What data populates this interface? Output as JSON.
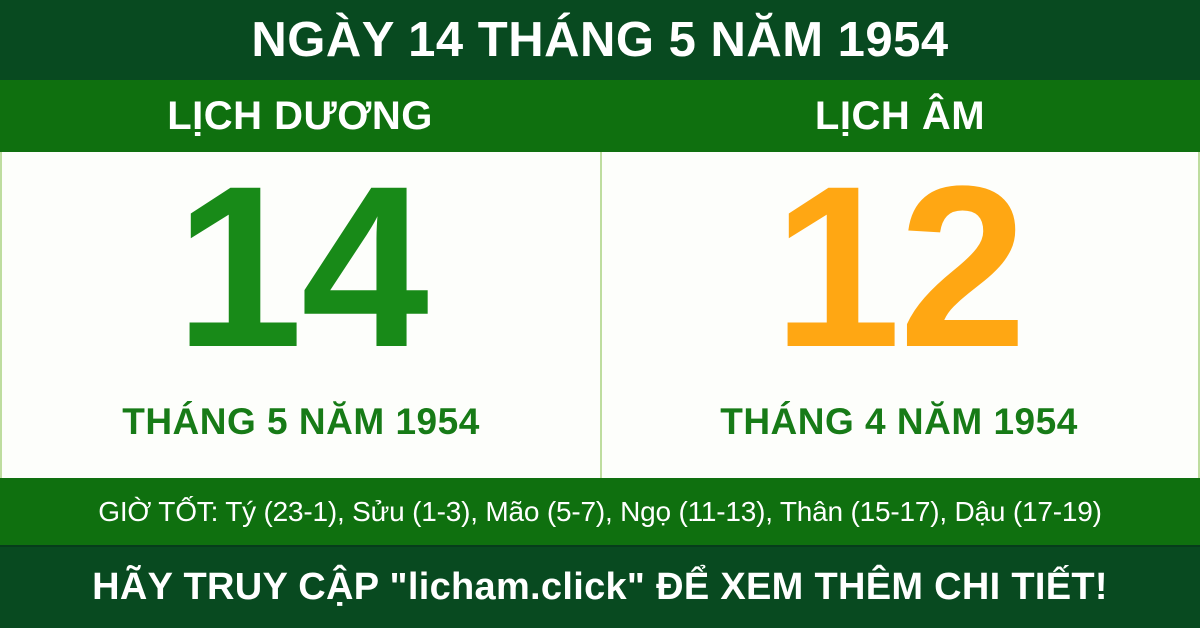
{
  "banner": {
    "title": "NGÀY 14 THÁNG 5 NĂM 1954",
    "solar": {
      "header": "LỊCH DƯƠNG",
      "day": "14",
      "month_year": "THÁNG 5 NĂM 1954"
    },
    "lunar": {
      "header": "LỊCH ÂM",
      "day": "12",
      "month_year": "THÁNG 4 NĂM 1954"
    },
    "good_hours": "GIỜ TỐT: Tý (23-1), Sửu (1-3), Mão (5-7), Ngọ (11-13), Thân (15-17), Dậu (17-19)",
    "footer": "HÃY TRUY CẬP \"licham.click\" ĐỂ XEM THÊM CHI TIẾT!",
    "colors": {
      "dark_green": "#084a20",
      "band_green": "#0f700f",
      "solar_day_green": "#188a18",
      "month_text_green": "#177b17",
      "lunar_day_orange": "#ffa713",
      "divider_light_green": "#bedd9f",
      "text_white": "#ffffff",
      "card_background": "#fdfefb"
    }
  }
}
